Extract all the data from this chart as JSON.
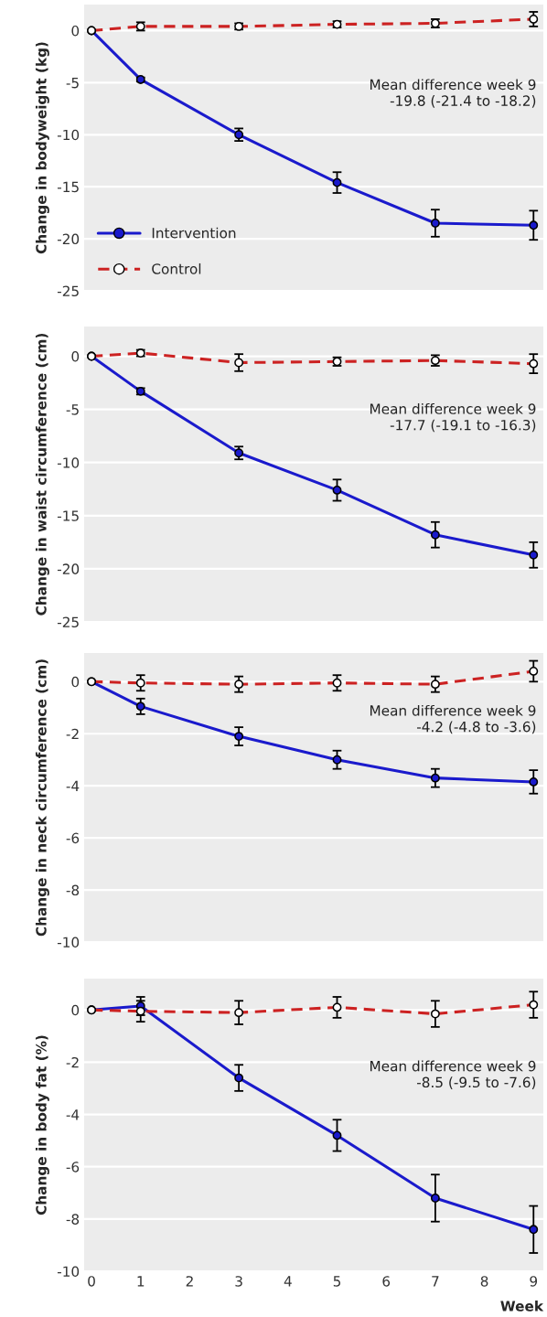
{
  "chart_data": [
    {
      "type": "line",
      "ylabel": "Change in bodyweight (kg)",
      "x": [
        0,
        1,
        3,
        5,
        7,
        9
      ],
      "xlim": [
        -0.15,
        9.2
      ],
      "xticks": [
        0,
        1,
        2,
        3,
        4,
        5,
        6,
        7,
        8,
        9
      ],
      "ylim": [
        -25,
        2.5
      ],
      "yticks": [
        -25,
        -20,
        -15,
        -10,
        -5,
        0
      ],
      "grid": "y",
      "tick_labels": "y",
      "legend": "bottom left",
      "marker": "circle",
      "annotations": [
        "Mean difference week 9\n-19.8 (-21.4 to -18.2)"
      ],
      "series": [
        {
          "name": "Intervention",
          "color": "#1a1acc",
          "line_style": "solid",
          "values": [
            0,
            -4.7,
            -10.0,
            -14.6,
            -18.5,
            -18.7
          ],
          "errors": [
            null,
            0.2,
            0.6,
            1.0,
            1.3,
            1.4
          ]
        },
        {
          "name": "Control",
          "color": "#cc2222",
          "line_style": "dashed",
          "values": [
            0,
            0.4,
            0.4,
            0.6,
            0.7,
            1.1
          ],
          "errors": [
            null,
            0.4,
            0.3,
            0.3,
            0.4,
            0.7
          ]
        }
      ]
    },
    {
      "type": "line",
      "ylabel": "Change in waist circumference (cm)",
      "x": [
        0,
        1,
        3,
        5,
        7,
        9
      ],
      "xlim": [
        -0.15,
        9.2
      ],
      "xticks": [
        0,
        1,
        2,
        3,
        4,
        5,
        6,
        7,
        8,
        9
      ],
      "ylim": [
        -25,
        2.8
      ],
      "yticks": [
        -25,
        -20,
        -15,
        -10,
        -5,
        0
      ],
      "grid": "y",
      "tick_labels": "y",
      "marker": "circle",
      "annotations": [
        "Mean difference week 9\n-17.7 (-19.1 to -16.3)"
      ],
      "series": [
        {
          "color": "#1a1acc",
          "line_style": "solid",
          "values": [
            0,
            -3.3,
            -9.1,
            -12.6,
            -16.8,
            -18.7
          ],
          "errors": [
            null,
            0.3,
            0.6,
            1.0,
            1.2,
            1.2
          ]
        },
        {
          "color": "#cc2222",
          "line_style": "dashed",
          "values": [
            0,
            0.3,
            -0.6,
            -0.5,
            -0.4,
            -0.7
          ],
          "errors": [
            null,
            0.3,
            0.8,
            0.4,
            0.5,
            0.9
          ]
        }
      ]
    },
    {
      "type": "line",
      "ylabel": "Change in neck circumference (cm)",
      "x": [
        0,
        1,
        3,
        5,
        7,
        9
      ],
      "xlim": [
        -0.15,
        9.2
      ],
      "xticks": [
        0,
        1,
        2,
        3,
        4,
        5,
        6,
        7,
        8,
        9
      ],
      "ylim": [
        -10,
        1.1
      ],
      "yticks": [
        -10,
        -8,
        -6,
        -4,
        -2,
        0
      ],
      "grid": "y",
      "tick_labels": "y",
      "marker": "circle",
      "annotations": [
        "Mean difference week 9\n-4.2 (-4.8 to -3.6)"
      ],
      "series": [
        {
          "color": "#1a1acc",
          "line_style": "solid",
          "values": [
            0,
            -0.95,
            -2.1,
            -3.0,
            -3.7,
            -3.85
          ],
          "errors": [
            null,
            0.3,
            0.35,
            0.35,
            0.35,
            0.45
          ]
        },
        {
          "color": "#cc2222",
          "line_style": "dashed",
          "values": [
            0,
            -0.05,
            -0.1,
            -0.05,
            -0.1,
            0.4
          ],
          "errors": [
            null,
            0.3,
            0.3,
            0.3,
            0.3,
            0.4
          ]
        }
      ]
    },
    {
      "type": "line",
      "ylabel": "Change in body fat (%)",
      "xlabel": "Week",
      "x": [
        0,
        1,
        3,
        5,
        7,
        9
      ],
      "xlim": [
        -0.15,
        9.2
      ],
      "xticks": [
        0,
        1,
        2,
        3,
        4,
        5,
        6,
        7,
        8,
        9
      ],
      "ylim": [
        -10,
        1.2
      ],
      "yticks": [
        -10,
        -8,
        -6,
        -4,
        -2,
        0
      ],
      "grid": "y",
      "marker": "circle",
      "annotations": [
        "Mean difference week 9\n-8.5 (-9.5 to -7.6)"
      ],
      "series": [
        {
          "color": "#1a1acc",
          "line_style": "solid",
          "values": [
            0,
            0.15,
            -2.6,
            -4.8,
            -7.2,
            -8.4
          ],
          "errors": [
            null,
            0.35,
            0.5,
            0.6,
            0.9,
            0.9
          ]
        },
        {
          "color": "#cc2222",
          "line_style": "dashed",
          "values": [
            0,
            -0.05,
            -0.1,
            0.1,
            -0.15,
            0.2
          ],
          "errors": [
            null,
            0.4,
            0.45,
            0.4,
            0.5,
            0.5
          ]
        }
      ]
    }
  ]
}
